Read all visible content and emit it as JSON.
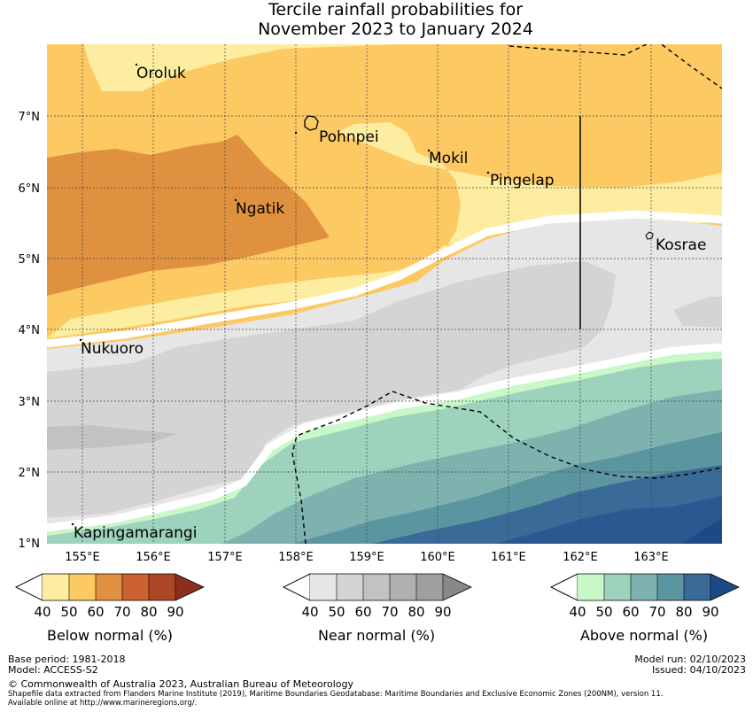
{
  "title": {
    "line1": "Tercile rainfall probabilities for",
    "line2": "November 2023 to January 2024"
  },
  "map": {
    "lon_ticks": [
      "155°E",
      "156°E",
      "157°E",
      "158°E",
      "159°E",
      "160°E",
      "161°E",
      "162°E",
      "163°E"
    ],
    "lat_ticks": [
      "7°N",
      "6°N",
      "5°N",
      "4°N",
      "3°N",
      "2°N",
      "1°N"
    ],
    "places": {
      "oroluk": "Oroluk",
      "pohnpei": "Pohnpei",
      "mokil": "Mokil",
      "pingelap": "Pingelap",
      "ngatik": "Ngatik",
      "kosrae": "Kosrae",
      "nukuoro": "Nukuoro",
      "kapingamarangi": "Kapingamarangi"
    }
  },
  "legends": {
    "below": {
      "title": "Below normal (%)",
      "ticks": [
        "40",
        "50",
        "60",
        "70",
        "80",
        "90"
      ],
      "colors": [
        "#fdeda0",
        "#fdc962",
        "#e0913f",
        "#cb622f",
        "#ad4725",
        "#8a2f1c"
      ]
    },
    "near": {
      "title": "Near normal (%)",
      "ticks": [
        "40",
        "50",
        "60",
        "70",
        "80",
        "90"
      ],
      "colors": [
        "#e6e6e6",
        "#d4d4d4",
        "#c2c2c2",
        "#b0b0b0",
        "#9f9f9f",
        "#888888"
      ]
    },
    "above": {
      "title": "Above normal (%)",
      "ticks": [
        "40",
        "50",
        "60",
        "70",
        "80",
        "90"
      ],
      "colors": [
        "#c8f7c8",
        "#9dd2bc",
        "#7eb2ae",
        "#5b96a0",
        "#3a6a98",
        "#1c4a84"
      ]
    }
  },
  "footer": {
    "base_period": "Base period: 1981-2018",
    "model": "Model: ACCESS-S2",
    "model_run": "Model run: 02/10/2023",
    "issued": "Issued: 04/10/2023",
    "copyright": "© Commonwealth of Australia 2023, Australian Bureau of Meteorology",
    "shapefile": "Shapefile data extracted from Flanders Marine Institute (2019), Maritime Boundaries Geodatabase: Maritime Boundaries and Exclusive Economic Zones (200NM), version 11.",
    "available": "Available online at http://www.marineregions.org/."
  }
}
